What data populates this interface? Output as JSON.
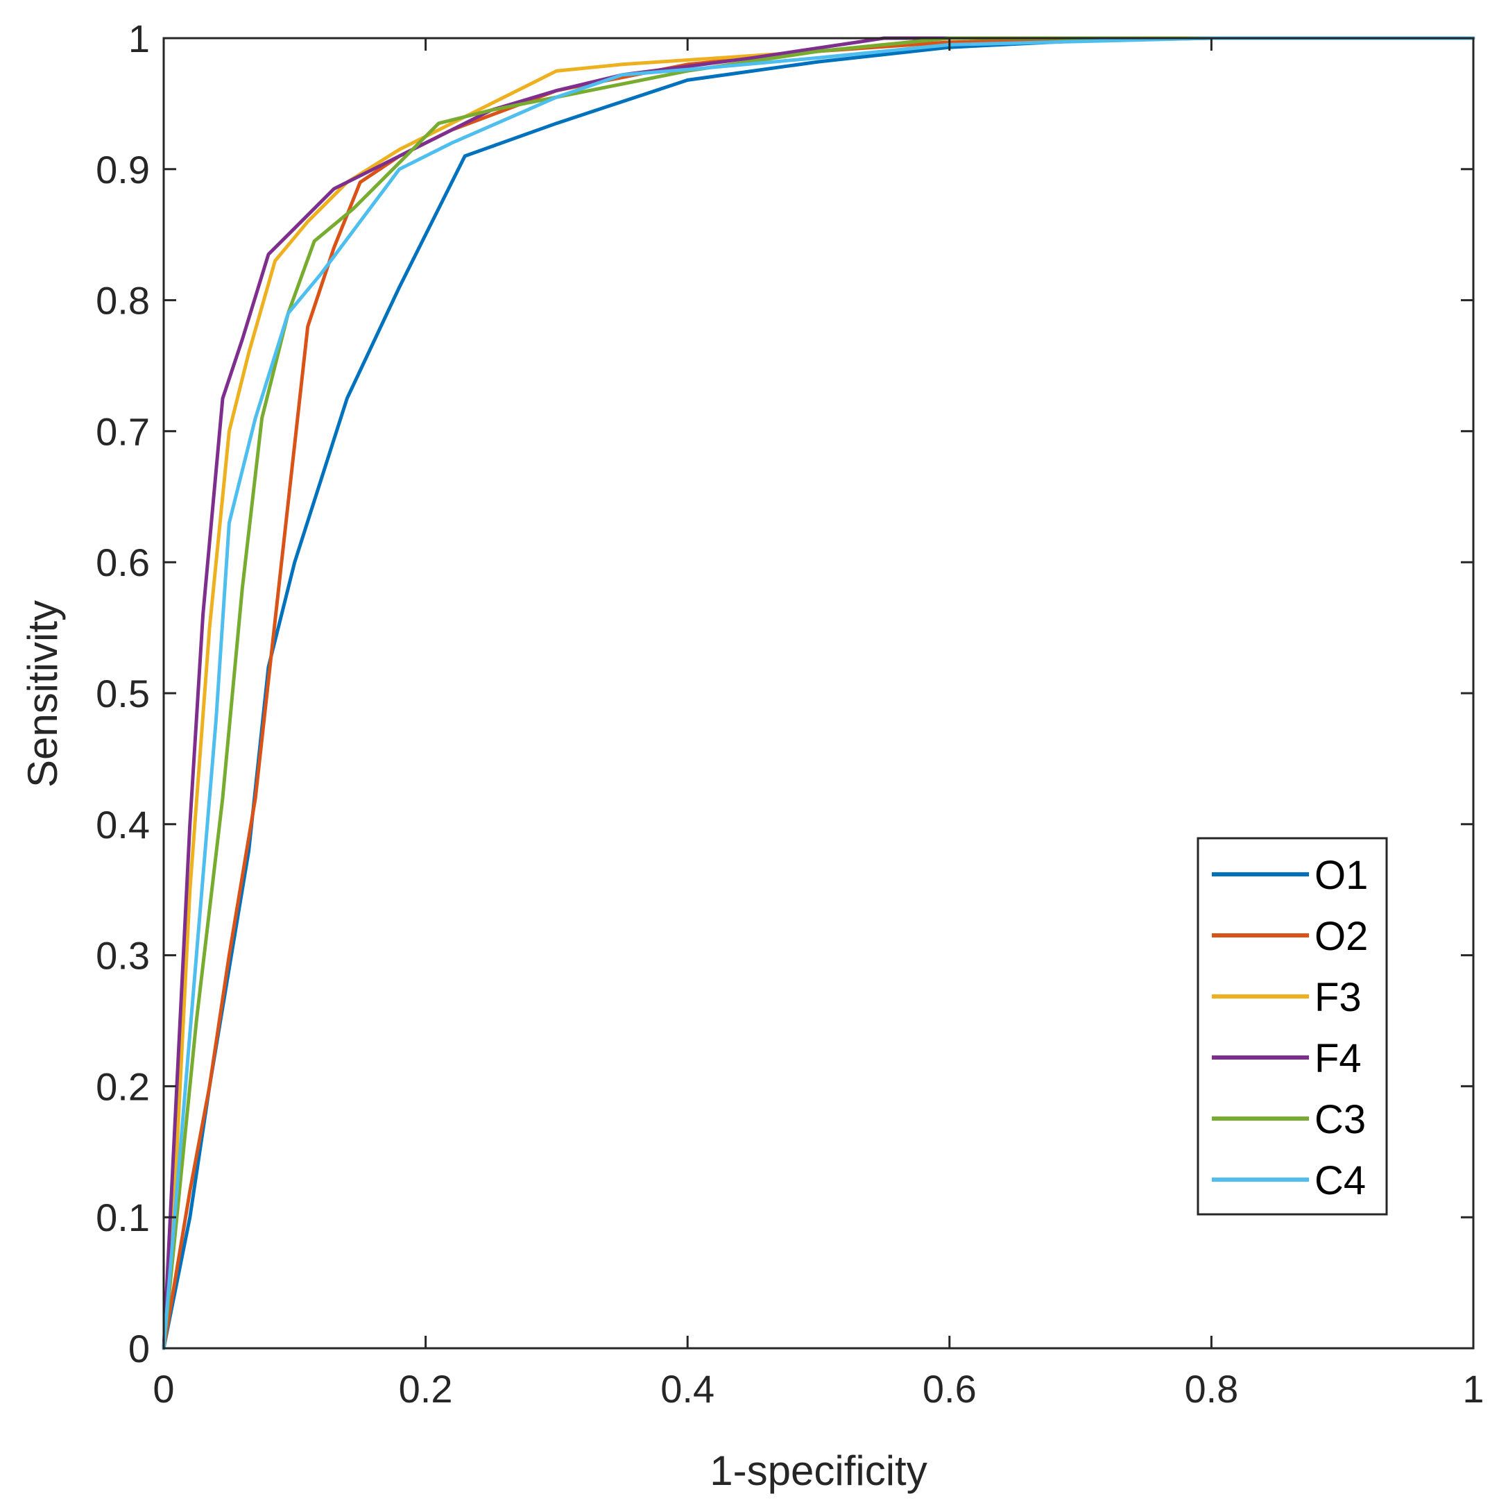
{
  "chart_data": {
    "type": "line",
    "title": "",
    "xlabel": "1-specificity",
    "ylabel": "Sensitivity",
    "xlim": [
      0,
      1
    ],
    "ylim": [
      0,
      1
    ],
    "grid": false,
    "legend_position": "bottom-right",
    "xticks": [
      0,
      0.2,
      0.4,
      0.6,
      0.8,
      1
    ],
    "xtick_labels": [
      "0",
      "0.2",
      "0.4",
      "0.6",
      "0.8",
      "1"
    ],
    "yticks": [
      0,
      0.1,
      0.2,
      0.3,
      0.4,
      0.5,
      0.6,
      0.7,
      0.8,
      0.9,
      1
    ],
    "ytick_labels": [
      "0",
      "0.1",
      "0.2",
      "0.3",
      "0.4",
      "0.5",
      "0.6",
      "0.7",
      "0.8",
      "0.9",
      "1"
    ],
    "series": [
      {
        "name": "O1",
        "color": "#0072BD",
        "x": [
          0,
          0.01,
          0.02,
          0.035,
          0.05,
          0.065,
          0.08,
          0.1,
          0.14,
          0.18,
          0.23,
          0.3,
          0.4,
          0.5,
          0.6,
          0.7,
          0.8,
          1
        ],
        "y": [
          0,
          0.05,
          0.1,
          0.2,
          0.29,
          0.38,
          0.52,
          0.6,
          0.725,
          0.81,
          0.91,
          0.935,
          0.968,
          0.982,
          0.993,
          0.998,
          1,
          1
        ]
      },
      {
        "name": "O2",
        "color": "#D95319",
        "x": [
          0,
          0.01,
          0.02,
          0.035,
          0.05,
          0.07,
          0.09,
          0.11,
          0.13,
          0.15,
          0.18,
          0.22,
          0.3,
          0.4,
          0.5,
          0.6,
          0.8,
          1
        ],
        "y": [
          0,
          0.06,
          0.12,
          0.2,
          0.3,
          0.42,
          0.6,
          0.78,
          0.84,
          0.89,
          0.91,
          0.93,
          0.96,
          0.98,
          0.99,
          0.997,
          1,
          1
        ]
      },
      {
        "name": "F3",
        "color": "#EDB120",
        "x": [
          0,
          0.01,
          0.02,
          0.035,
          0.05,
          0.065,
          0.085,
          0.11,
          0.14,
          0.18,
          0.22,
          0.25,
          0.3,
          0.35,
          0.5,
          0.6,
          0.8,
          1
        ],
        "y": [
          0,
          0.15,
          0.35,
          0.55,
          0.7,
          0.76,
          0.83,
          0.86,
          0.89,
          0.915,
          0.935,
          0.95,
          0.975,
          0.98,
          0.99,
          1,
          1,
          1
        ]
      },
      {
        "name": "F4",
        "color": "#7E2F8E",
        "x": [
          0,
          0.01,
          0.02,
          0.03,
          0.045,
          0.06,
          0.08,
          0.1,
          0.13,
          0.16,
          0.2,
          0.25,
          0.3,
          0.35,
          0.45,
          0.55,
          0.6,
          0.8,
          1
        ],
        "y": [
          0,
          0.2,
          0.4,
          0.56,
          0.725,
          0.77,
          0.835,
          0.855,
          0.885,
          0.9,
          0.92,
          0.945,
          0.96,
          0.972,
          0.985,
          1,
          1,
          1,
          1
        ]
      },
      {
        "name": "C3",
        "color": "#77AC30",
        "x": [
          0,
          0.01,
          0.025,
          0.045,
          0.06,
          0.075,
          0.095,
          0.115,
          0.145,
          0.18,
          0.21,
          0.25,
          0.3,
          0.4,
          0.5,
          0.6,
          0.8,
          1
        ],
        "y": [
          0,
          0.1,
          0.25,
          0.42,
          0.58,
          0.71,
          0.79,
          0.845,
          0.87,
          0.905,
          0.935,
          0.945,
          0.955,
          0.975,
          0.99,
          1,
          1,
          1
        ]
      },
      {
        "name": "C4",
        "color": "#4DBEEE",
        "x": [
          0,
          0.01,
          0.025,
          0.04,
          0.05,
          0.07,
          0.095,
          0.12,
          0.15,
          0.18,
          0.22,
          0.3,
          0.35,
          0.4,
          0.5,
          0.6,
          0.8,
          1
        ],
        "y": [
          0,
          0.12,
          0.3,
          0.48,
          0.63,
          0.71,
          0.79,
          0.82,
          0.86,
          0.9,
          0.92,
          0.955,
          0.972,
          0.976,
          0.985,
          0.995,
          1,
          1
        ]
      }
    ]
  }
}
